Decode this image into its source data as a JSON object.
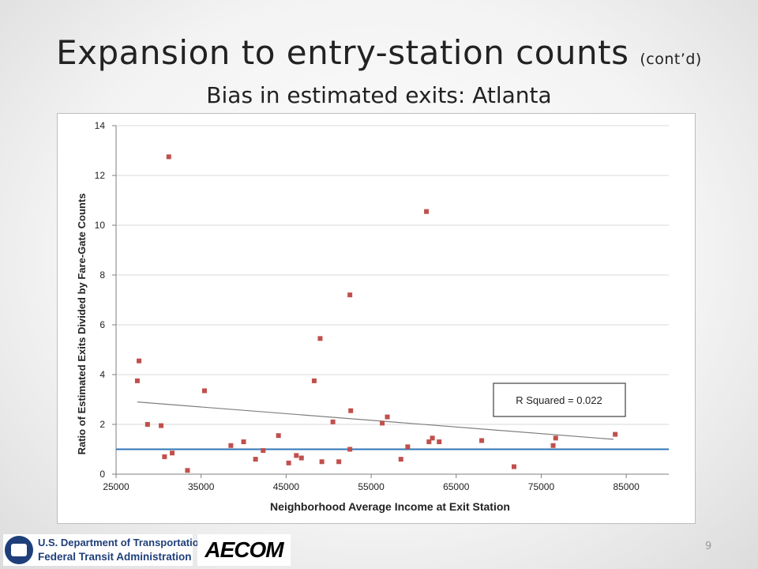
{
  "slide": {
    "title_main": "Expansion to entry-station counts",
    "title_suffix": "(cont’d)",
    "subtitle": "Bias in estimated exits: Atlanta",
    "page_number": "9"
  },
  "logos": {
    "dot_line1": "U.S. Department of Transportation",
    "dot_line2": "Federal Transit Administration",
    "aecom": "AECOM"
  },
  "chart_data": {
    "type": "scatter",
    "title": "",
    "xlabel": "Neighborhood Average Income at Exit Station",
    "ylabel": "Ratio of Estimated Exits Divided by Fare-Gate Counts",
    "xlim": [
      25000,
      90000
    ],
    "ylim": [
      0,
      14
    ],
    "xticks": [
      25000,
      35000,
      45000,
      55000,
      65000,
      75000,
      85000
    ],
    "yticks": [
      0,
      2,
      4,
      6,
      8,
      10,
      12,
      14
    ],
    "grid": "horizontal",
    "annotation": "R Squared = 0.022",
    "marker_color": "#c0504d",
    "reference_line": {
      "y": 1.0,
      "color": "#2e75b6"
    },
    "trendline": {
      "x": [
        27500,
        83500
      ],
      "y": [
        2.9,
        1.4
      ],
      "color": "#7f7f7f"
    },
    "points": [
      {
        "x": 27500,
        "y": 3.75
      },
      {
        "x": 27700,
        "y": 4.55
      },
      {
        "x": 28700,
        "y": 2.0
      },
      {
        "x": 30300,
        "y": 1.95
      },
      {
        "x": 30700,
        "y": 0.7
      },
      {
        "x": 31200,
        "y": 12.75
      },
      {
        "x": 31600,
        "y": 0.85
      },
      {
        "x": 33400,
        "y": 0.15
      },
      {
        "x": 35400,
        "y": 3.35
      },
      {
        "x": 38500,
        "y": 1.15
      },
      {
        "x": 40000,
        "y": 1.3
      },
      {
        "x": 41400,
        "y": 0.6
      },
      {
        "x": 42300,
        "y": 0.95
      },
      {
        "x": 44100,
        "y": 1.55
      },
      {
        "x": 45300,
        "y": 0.45
      },
      {
        "x": 46200,
        "y": 0.75
      },
      {
        "x": 46800,
        "y": 0.65
      },
      {
        "x": 48300,
        "y": 3.75
      },
      {
        "x": 49000,
        "y": 5.45
      },
      {
        "x": 49200,
        "y": 0.5
      },
      {
        "x": 50500,
        "y": 2.1
      },
      {
        "x": 51200,
        "y": 0.5
      },
      {
        "x": 52500,
        "y": 7.2
      },
      {
        "x": 52600,
        "y": 2.55
      },
      {
        "x": 52500,
        "y": 1.0
      },
      {
        "x": 56300,
        "y": 2.05
      },
      {
        "x": 56900,
        "y": 2.3
      },
      {
        "x": 58500,
        "y": 0.6
      },
      {
        "x": 59300,
        "y": 1.1
      },
      {
        "x": 61500,
        "y": 10.55
      },
      {
        "x": 61800,
        "y": 1.3
      },
      {
        "x": 62200,
        "y": 1.45
      },
      {
        "x": 63000,
        "y": 1.3
      },
      {
        "x": 68000,
        "y": 1.35
      },
      {
        "x": 71800,
        "y": 0.3
      },
      {
        "x": 76400,
        "y": 1.15
      },
      {
        "x": 76700,
        "y": 1.45
      },
      {
        "x": 83700,
        "y": 1.6
      }
    ]
  }
}
